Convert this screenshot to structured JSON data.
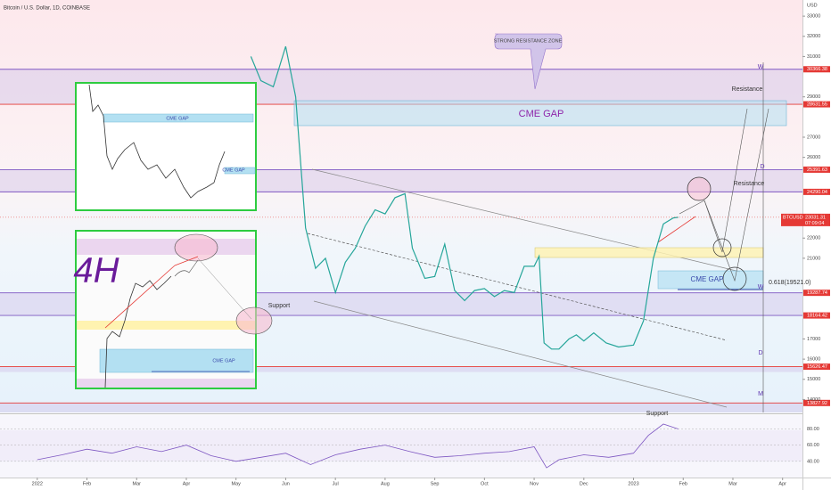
{
  "chart_data": {
    "type": "line",
    "title": "Bitcoin / U.S. Dollar, 1D, COINBASE",
    "currency": "USD",
    "symbol_label": "BTCUSD",
    "last_price": 23031.31,
    "last_time": "07:09:04",
    "color": "#26a69a",
    "x": [
      4.3,
      4.5,
      4.75,
      5.0,
      5.2,
      5.4,
      5.6,
      5.8,
      6.0,
      6.2,
      6.4,
      6.6,
      6.8,
      7.0,
      7.2,
      7.4,
      7.55,
      7.8,
      8.0,
      8.2,
      8.4,
      8.6,
      8.8,
      9.0,
      9.2,
      9.4,
      9.6,
      9.8,
      10.0,
      10.1,
      10.2,
      10.35,
      10.5,
      10.7,
      10.85,
      11.0,
      11.2,
      11.45,
      11.7,
      12.0,
      12.2,
      12.4,
      12.6,
      12.8,
      12.9
    ],
    "values": [
      31000,
      29800,
      29500,
      31500,
      29000,
      22500,
      20500,
      21000,
      19300,
      20800,
      21500,
      22600,
      23400,
      23200,
      24000,
      24200,
      21500,
      20000,
      20100,
      21700,
      19400,
      18900,
      19400,
      19500,
      19100,
      19400,
      19300,
      20600,
      20600,
      21100,
      16800,
      16500,
      16500,
      17000,
      17200,
      16900,
      17300,
      16800,
      16600,
      16700,
      17900,
      21000,
      22700,
      23000,
      23031
    ],
    "xlim": [
      -0.75,
      15.4
    ],
    "xticks": [
      {
        "value": 0,
        "label": "2022"
      },
      {
        "value": 1,
        "label": "Feb"
      },
      {
        "value": 2,
        "label": "Mar"
      },
      {
        "value": 3,
        "label": "Apr"
      },
      {
        "value": 4,
        "label": "May"
      },
      {
        "value": 5,
        "label": "Jun"
      },
      {
        "value": 6,
        "label": "Jul"
      },
      {
        "value": 7,
        "label": "Aug"
      },
      {
        "value": 8,
        "label": "Sep"
      },
      {
        "value": 9,
        "label": "Oct"
      },
      {
        "value": 10,
        "label": "Nov"
      },
      {
        "value": 11,
        "label": "Dec"
      },
      {
        "value": 12,
        "label": "2023"
      },
      {
        "value": 13,
        "label": "Feb"
      },
      {
        "value": 14,
        "label": "Mar"
      },
      {
        "value": 15,
        "label": "Apr"
      }
    ],
    "ylim": [
      13400,
      33800
    ],
    "yticks": [
      14000,
      15000,
      16000,
      17000,
      21000,
      22000,
      26000,
      27000,
      29000,
      31000,
      32000,
      33000
    ],
    "price_levels": [
      30366.38,
      28631.55,
      25391.63,
      24290.04,
      19287.74,
      18164.42,
      15626.47,
      13827.92
    ],
    "level_colors": [
      "#7e57c2",
      "#e53935",
      "#7e57c2",
      "#7e57c2",
      "#7e57c2",
      "#7e57c2",
      "#e53935",
      "#e53935"
    ],
    "annotations": [
      "STRONG RESISTANCE ZONE",
      "CME GAP",
      "Resistance",
      "Resistance",
      "Support",
      "Support",
      "CME GAP",
      "0.618(19521.0)",
      "W",
      "D",
      "W",
      "D",
      "M"
    ],
    "inset_labels": [
      "CME GAP",
      "CME GAP",
      "4H",
      "CME GAP"
    ],
    "rsi": {
      "x": [
        0,
        0.5,
        1,
        1.5,
        2,
        2.5,
        3,
        3.5,
        4,
        4.5,
        5,
        5.5,
        6,
        6.5,
        7,
        7.5,
        8,
        8.5,
        9,
        9.5,
        10,
        10.25,
        10.5,
        11,
        11.5,
        12,
        12.3,
        12.6,
        12.9
      ],
      "values": [
        42,
        48,
        55,
        50,
        58,
        52,
        60,
        47,
        40,
        45,
        50,
        36,
        48,
        55,
        60,
        52,
        45,
        47,
        50,
        52,
        58,
        32,
        42,
        48,
        45,
        50,
        72,
        86,
        80
      ],
      "ylim": [
        20,
        97
      ],
      "yticks": [
        {
          "value": 40,
          "label": "40.00"
        },
        {
          "value": 60,
          "label": "60.00"
        },
        {
          "value": 80,
          "label": "80.00"
        }
      ]
    }
  }
}
